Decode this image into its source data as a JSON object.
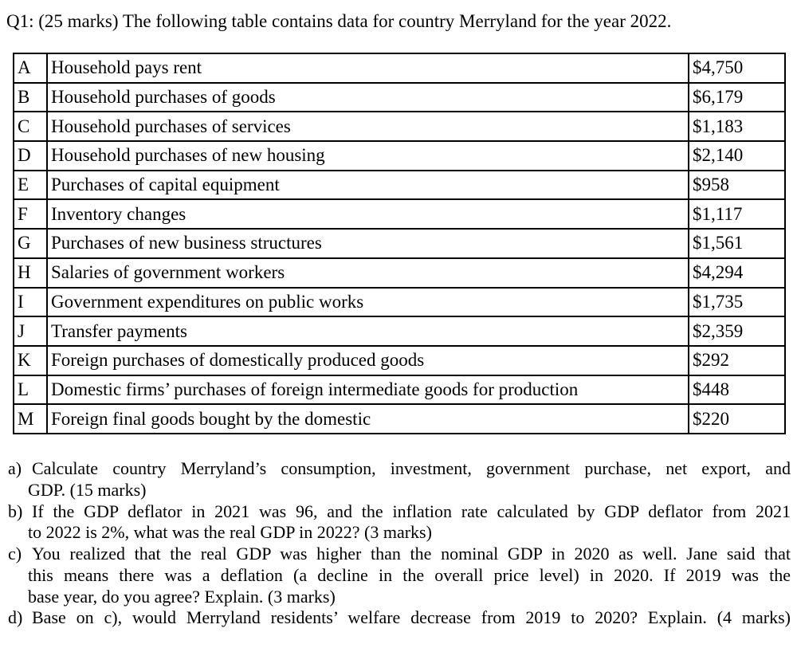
{
  "title": "Q1: (25 marks) The following table contains data for country Merryland for the year 2022.",
  "table": {
    "rows": [
      {
        "id": "A",
        "description": "Household pays rent",
        "value": "$4,750"
      },
      {
        "id": "B",
        "description": "Household purchases of goods",
        "value": "$6,179"
      },
      {
        "id": "C",
        "description": "Household purchases of services",
        "value": "$1,183"
      },
      {
        "id": "D",
        "description": "Household purchases of new housing",
        "value": "$2,140"
      },
      {
        "id": "E",
        "description": "Purchases of capital equipment",
        "value": "$958"
      },
      {
        "id": "F",
        "description": "Inventory changes",
        "value": "$1,117"
      },
      {
        "id": "G",
        "description": "Purchases of new business structures",
        "value": "$1,561"
      },
      {
        "id": "H",
        "description": "Salaries of government workers",
        "value": "$4,294"
      },
      {
        "id": "I",
        "description": "Government expenditures on public works",
        "value": "$1,735"
      },
      {
        "id": "J",
        "description": "Transfer payments",
        "value": "$2,359"
      },
      {
        "id": "K",
        "description": "Foreign purchases of domestically produced goods",
        "value": "$292"
      },
      {
        "id": "L",
        "description": "Domestic firms’ purchases of foreign intermediate goods for production",
        "value": "$448"
      },
      {
        "id": "M",
        "description": "Foreign final goods bought by the domestic",
        "value": "$220"
      }
    ]
  },
  "questions": [
    {
      "label": "a)",
      "lines": [
        "Calculate country Merryland’s consumption, investment, government purchase, net export, and",
        "GDP. (15 marks)"
      ]
    },
    {
      "label": "b)",
      "lines": [
        "If the GDP deflator in 2021 was 96, and the inflation rate calculated by GDP deflator from 2021",
        "to 2022 is 2%, what was the real GDP in 2022? (3 marks)"
      ]
    },
    {
      "label": "c)",
      "lines": [
        "You realized that the real GDP was higher than the nominal GDP in 2020 as well. Jane said that",
        "this means there was a deflation (a decline in the overall price level) in 2020. If 2019 was the",
        "base year, do you agree? Explain. (3 marks)"
      ]
    },
    {
      "label": "d)",
      "lines": [
        "Base on c), would Merryland residents’ welfare decrease from 2019 to 2020? Explain. (4 marks)"
      ]
    }
  ]
}
